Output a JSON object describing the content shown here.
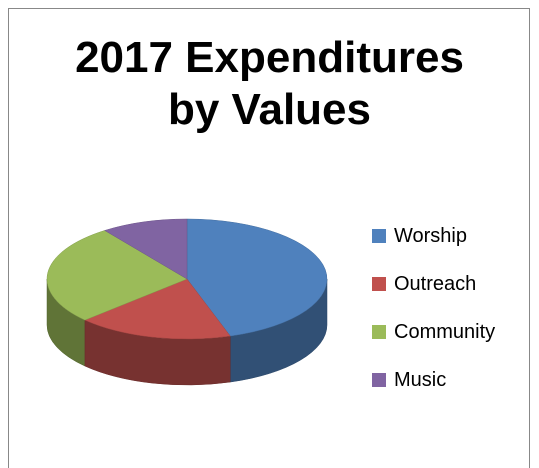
{
  "chart_data": {
    "type": "pie",
    "title": "2017 Expenditures by Values",
    "title_lines": [
      "2017 Expenditures",
      "by Values"
    ],
    "categories": [
      "Worship",
      "Outreach",
      "Community",
      "Music"
    ],
    "values": [
      45,
      18,
      27,
      10
    ],
    "value_unit": "percent (estimated from slice angles)",
    "colors": [
      "#4F81BD",
      "#C0504D",
      "#9BBB59",
      "#8064A2"
    ],
    "legend_position": "right",
    "style": "3d"
  }
}
